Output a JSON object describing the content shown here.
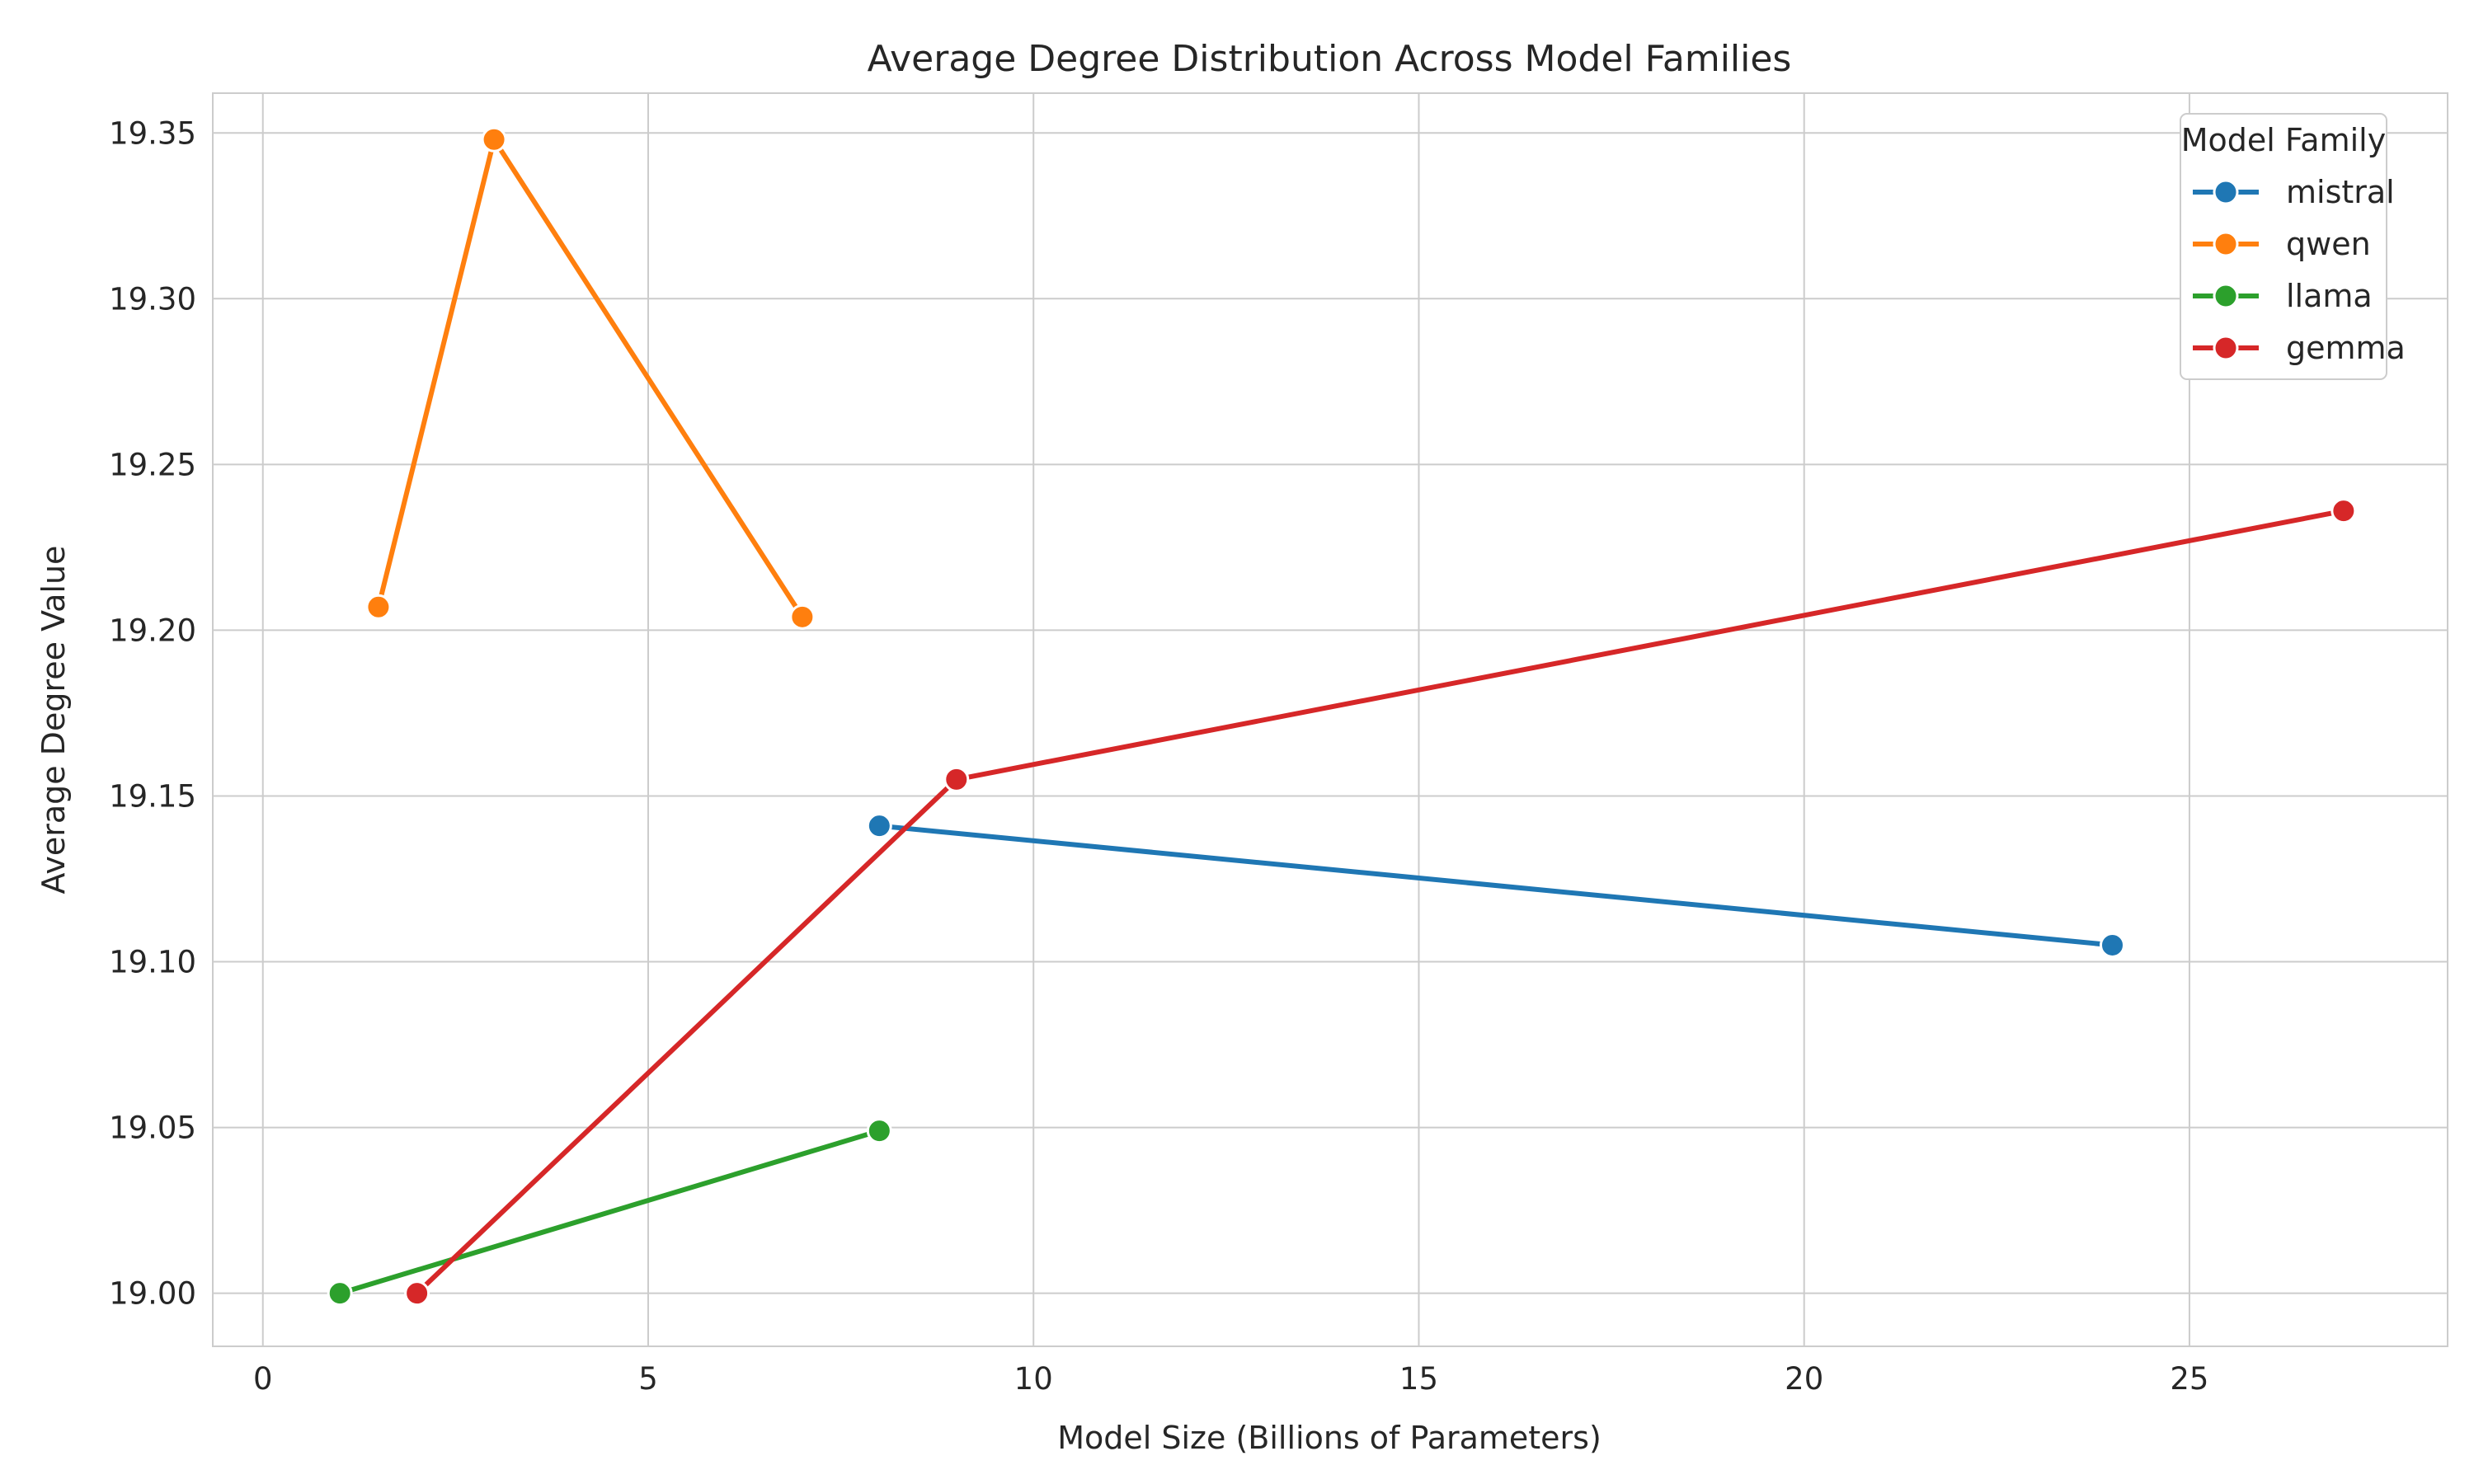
{
  "chart_data": {
    "type": "line",
    "title": "Average Degree Distribution Across Model Families",
    "xlabel": "Model Size (Billions of Parameters)",
    "ylabel": "Average Degree Value",
    "xlim": [
      -0.65,
      28.35
    ],
    "ylim": [
      18.984,
      19.362
    ],
    "xticks": [
      0,
      5,
      10,
      15,
      20,
      25
    ],
    "xtick_labels": [
      "0",
      "5",
      "10",
      "15",
      "20",
      "25"
    ],
    "yticks": [
      19.0,
      19.05,
      19.1,
      19.15,
      19.2,
      19.25,
      19.3,
      19.35
    ],
    "ytick_labels": [
      "19.00",
      "19.05",
      "19.10",
      "19.15",
      "19.20",
      "19.25",
      "19.30",
      "19.35"
    ],
    "grid": true,
    "legend": {
      "title": "Model Family",
      "placement": "top-right"
    },
    "series": [
      {
        "name": "mistral",
        "color": "#1f77b4",
        "x": [
          8,
          24
        ],
        "y": [
          19.141,
          19.105
        ]
      },
      {
        "name": "qwen",
        "color": "#ff7f0e",
        "x": [
          1.5,
          3,
          7
        ],
        "y": [
          19.207,
          19.348,
          19.204
        ]
      },
      {
        "name": "llama",
        "color": "#2ca02c",
        "x": [
          1,
          8
        ],
        "y": [
          19.0,
          19.049
        ]
      },
      {
        "name": "gemma",
        "color": "#d62728",
        "x": [
          2,
          9,
          27
        ],
        "y": [
          19.0,
          19.155,
          19.236
        ]
      }
    ]
  }
}
